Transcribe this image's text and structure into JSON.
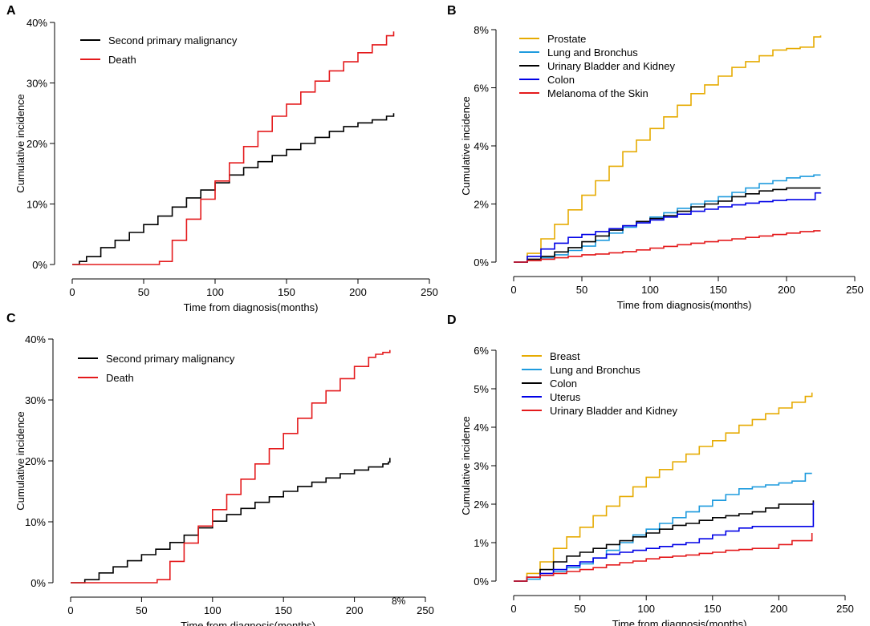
{
  "figure": {
    "description_text": "",
    "stray_label": "8%"
  },
  "chart_data": [
    {
      "panel": "A",
      "type": "line",
      "xlabel": "Time from diagnosis(months)",
      "ylabel": "Cumulative incidence",
      "xlim": [
        0,
        250
      ],
      "ylim": [
        0,
        40
      ],
      "x_ticks": [
        "0",
        "50",
        "100",
        "150",
        "200",
        "250"
      ],
      "y_ticks": [
        "0%",
        "10%",
        "20%",
        "30%",
        "40%"
      ],
      "x_tick_values": [
        0,
        50,
        100,
        150,
        200,
        250
      ],
      "y_tick_values": [
        0,
        10,
        20,
        30,
        40
      ],
      "legend": "top-left",
      "series": [
        {
          "name": "Second primary malignancy",
          "color": "#000000",
          "x": [
            0,
            5,
            10,
            20,
            30,
            40,
            50,
            60,
            70,
            80,
            90,
            100,
            110,
            120,
            130,
            140,
            150,
            160,
            170,
            180,
            190,
            200,
            210,
            220,
            225
          ],
          "y": [
            0,
            0.5,
            1.3,
            2.8,
            4.0,
            5.3,
            6.6,
            8.0,
            9.5,
            11.0,
            12.3,
            13.5,
            14.8,
            16.0,
            17.0,
            18.0,
            19.0,
            20.0,
            21.0,
            22.0,
            22.8,
            23.4,
            23.9,
            24.5,
            25.0
          ]
        },
        {
          "name": "Death",
          "color": "#e41a1c",
          "x": [
            0,
            60,
            61,
            70,
            80,
            90,
            100,
            110,
            120,
            130,
            140,
            150,
            160,
            170,
            180,
            190,
            200,
            210,
            220,
            225
          ],
          "y": [
            0,
            0,
            0.5,
            4.0,
            7.5,
            10.8,
            13.8,
            16.8,
            19.5,
            22.0,
            24.5,
            26.5,
            28.5,
            30.3,
            32.0,
            33.5,
            35.0,
            36.3,
            37.8,
            38.5
          ]
        }
      ]
    },
    {
      "panel": "B",
      "type": "line",
      "xlabel": "Time from diagnosis(months)",
      "ylabel": "Cumulative incidence",
      "xlim": [
        0,
        250
      ],
      "ylim": [
        0,
        8
      ],
      "x_ticks": [
        "0",
        "50",
        "100",
        "150",
        "200",
        "250"
      ],
      "y_ticks": [
        "0%",
        "2%",
        "4%",
        "6%",
        "8%"
      ],
      "x_tick_values": [
        0,
        50,
        100,
        150,
        200,
        250
      ],
      "y_tick_values": [
        0,
        2,
        4,
        6,
        8
      ],
      "legend": "top-left",
      "series": [
        {
          "name": "Prostate",
          "color": "#e6ab02",
          "x": [
            0,
            10,
            20,
            30,
            40,
            50,
            60,
            70,
            80,
            90,
            100,
            110,
            120,
            130,
            140,
            150,
            160,
            170,
            180,
            190,
            200,
            210,
            220,
            225
          ],
          "y": [
            0,
            0.3,
            0.8,
            1.3,
            1.8,
            2.3,
            2.8,
            3.3,
            3.8,
            4.2,
            4.6,
            5.0,
            5.4,
            5.8,
            6.1,
            6.4,
            6.7,
            6.9,
            7.1,
            7.3,
            7.35,
            7.4,
            7.75,
            7.8
          ]
        },
        {
          "name": "Lung and Bronchus",
          "color": "#1f9bde",
          "x": [
            0,
            10,
            20,
            30,
            40,
            50,
            60,
            70,
            80,
            90,
            100,
            110,
            120,
            130,
            140,
            150,
            160,
            170,
            180,
            190,
            200,
            210,
            220,
            225
          ],
          "y": [
            0,
            0.05,
            0.15,
            0.25,
            0.4,
            0.55,
            0.75,
            1.0,
            1.2,
            1.4,
            1.55,
            1.7,
            1.85,
            2.0,
            2.1,
            2.25,
            2.4,
            2.55,
            2.7,
            2.8,
            2.9,
            2.95,
            3.0,
            3.0
          ]
        },
        {
          "name": "Urinary Bladder and Kidney",
          "color": "#000000",
          "x": [
            0,
            10,
            20,
            30,
            40,
            50,
            60,
            70,
            80,
            90,
            100,
            110,
            120,
            130,
            140,
            150,
            160,
            170,
            180,
            190,
            200,
            210,
            220,
            225
          ],
          "y": [
            0,
            0.1,
            0.2,
            0.35,
            0.5,
            0.7,
            0.9,
            1.1,
            1.25,
            1.4,
            1.5,
            1.6,
            1.75,
            1.9,
            2.0,
            2.1,
            2.25,
            2.35,
            2.45,
            2.5,
            2.55,
            2.55,
            2.55,
            2.55
          ]
        },
        {
          "name": "Colon",
          "color": "#0000e6",
          "x": [
            0,
            10,
            20,
            30,
            40,
            50,
            60,
            70,
            80,
            90,
            100,
            110,
            120,
            130,
            140,
            150,
            160,
            170,
            180,
            190,
            200,
            210,
            220,
            221,
            225
          ],
          "y": [
            0,
            0.2,
            0.45,
            0.65,
            0.85,
            0.95,
            1.05,
            1.15,
            1.25,
            1.35,
            1.45,
            1.55,
            1.65,
            1.75,
            1.82,
            1.9,
            1.97,
            2.03,
            2.08,
            2.12,
            2.15,
            2.15,
            2.15,
            2.38,
            2.4
          ]
        },
        {
          "name": "Melanoma of the Skin",
          "color": "#e41a1c",
          "x": [
            0,
            10,
            20,
            30,
            40,
            50,
            60,
            70,
            80,
            90,
            100,
            110,
            120,
            130,
            140,
            150,
            160,
            170,
            180,
            190,
            200,
            210,
            220,
            225
          ],
          "y": [
            0,
            0.05,
            0.1,
            0.15,
            0.2,
            0.25,
            0.28,
            0.32,
            0.36,
            0.42,
            0.48,
            0.54,
            0.6,
            0.65,
            0.7,
            0.75,
            0.8,
            0.85,
            0.9,
            0.95,
            1.0,
            1.05,
            1.08,
            1.08
          ]
        }
      ]
    },
    {
      "panel": "C",
      "type": "line",
      "xlabel": "Time from diagnosis(months)",
      "ylabel": "Cumulative incidence",
      "xlim": [
        0,
        250
      ],
      "ylim": [
        0,
        40
      ],
      "x_ticks": [
        "0",
        "50",
        "100",
        "150",
        "200",
        "250"
      ],
      "y_ticks": [
        "0%",
        "10%",
        "20%",
        "30%",
        "40%"
      ],
      "x_tick_values": [
        0,
        50,
        100,
        150,
        200,
        250
      ],
      "y_tick_values": [
        0,
        10,
        20,
        30,
        40
      ],
      "legend": "top-left",
      "series": [
        {
          "name": "Second primary malignancy",
          "color": "#000000",
          "x": [
            0,
            10,
            20,
            30,
            40,
            50,
            60,
            70,
            80,
            90,
            100,
            110,
            120,
            130,
            140,
            150,
            160,
            170,
            180,
            190,
            200,
            210,
            220,
            224,
            225
          ],
          "y": [
            0,
            0.5,
            1.6,
            2.6,
            3.6,
            4.6,
            5.5,
            6.6,
            7.8,
            9.0,
            10.1,
            11.2,
            12.2,
            13.2,
            14.1,
            15.0,
            15.8,
            16.5,
            17.2,
            17.9,
            18.5,
            19.0,
            19.5,
            19.8,
            20.5
          ]
        },
        {
          "name": "Death",
          "color": "#e41a1c",
          "x": [
            0,
            60,
            61,
            70,
            80,
            90,
            100,
            110,
            120,
            130,
            140,
            150,
            160,
            170,
            180,
            190,
            200,
            210,
            215,
            220,
            225
          ],
          "y": [
            0,
            0,
            0.5,
            3.5,
            6.5,
            9.3,
            12.0,
            14.5,
            17.0,
            19.5,
            22.0,
            24.5,
            27.0,
            29.5,
            31.5,
            33.5,
            35.5,
            37.0,
            37.5,
            37.8,
            38.2
          ]
        }
      ]
    },
    {
      "panel": "D",
      "type": "line",
      "xlabel": "Time from diagnosis(months)",
      "ylabel": "Cumulative incidence",
      "xlim": [
        0,
        250
      ],
      "ylim": [
        0,
        6
      ],
      "x_ticks": [
        "0",
        "50",
        "100",
        "150",
        "200",
        "250"
      ],
      "y_ticks": [
        "0%",
        "1%",
        "2%",
        "3%",
        "4%",
        "5%",
        "6%"
      ],
      "x_tick_values": [
        0,
        50,
        100,
        150,
        200,
        250
      ],
      "y_tick_values": [
        0,
        1,
        2,
        3,
        4,
        5,
        6
      ],
      "legend": "top-left",
      "series": [
        {
          "name": "Breast",
          "color": "#e6ab02",
          "x": [
            0,
            10,
            20,
            30,
            40,
            50,
            60,
            70,
            80,
            90,
            100,
            110,
            120,
            130,
            140,
            150,
            160,
            170,
            180,
            190,
            200,
            210,
            220,
            225
          ],
          "y": [
            0,
            0.2,
            0.5,
            0.85,
            1.15,
            1.4,
            1.7,
            1.95,
            2.2,
            2.45,
            2.7,
            2.9,
            3.1,
            3.3,
            3.5,
            3.65,
            3.85,
            4.05,
            4.2,
            4.35,
            4.5,
            4.65,
            4.8,
            4.9
          ]
        },
        {
          "name": "Lung and Bronchus",
          "color": "#1f9bde",
          "x": [
            0,
            10,
            20,
            30,
            40,
            50,
            60,
            70,
            80,
            90,
            100,
            110,
            120,
            130,
            140,
            150,
            160,
            170,
            180,
            190,
            200,
            210,
            220,
            225
          ],
          "y": [
            0,
            0.05,
            0.15,
            0.25,
            0.35,
            0.45,
            0.6,
            0.8,
            1.0,
            1.2,
            1.35,
            1.5,
            1.65,
            1.8,
            1.95,
            2.1,
            2.25,
            2.4,
            2.45,
            2.5,
            2.55,
            2.6,
            2.8,
            2.8
          ]
        },
        {
          "name": "Colon",
          "color": "#000000",
          "x": [
            0,
            10,
            20,
            30,
            40,
            50,
            60,
            70,
            80,
            90,
            100,
            110,
            120,
            130,
            140,
            150,
            160,
            170,
            180,
            190,
            200,
            210,
            220,
            225,
            226
          ],
          "y": [
            0,
            0.1,
            0.3,
            0.5,
            0.65,
            0.75,
            0.85,
            0.95,
            1.05,
            1.15,
            1.25,
            1.35,
            1.45,
            1.5,
            1.58,
            1.65,
            1.7,
            1.75,
            1.8,
            1.9,
            2.0,
            2.0,
            2.0,
            2.0,
            2.1
          ]
        },
        {
          "name": "Uterus",
          "color": "#0000e6",
          "x": [
            0,
            10,
            20,
            30,
            40,
            50,
            60,
            70,
            80,
            90,
            100,
            110,
            120,
            130,
            140,
            150,
            160,
            170,
            180,
            190,
            200,
            210,
            220,
            225,
            226
          ],
          "y": [
            0,
            0.1,
            0.2,
            0.3,
            0.4,
            0.5,
            0.6,
            0.7,
            0.75,
            0.8,
            0.85,
            0.9,
            0.95,
            1.0,
            1.1,
            1.2,
            1.3,
            1.38,
            1.42,
            1.42,
            1.42,
            1.42,
            1.42,
            1.42,
            2.05
          ]
        },
        {
          "name": "Urinary Bladder and Kidney",
          "color": "#e41a1c",
          "x": [
            0,
            10,
            20,
            30,
            40,
            50,
            60,
            70,
            80,
            90,
            100,
            110,
            120,
            130,
            140,
            150,
            160,
            170,
            180,
            190,
            200,
            210,
            220,
            224,
            225
          ],
          "y": [
            0,
            0.1,
            0.15,
            0.2,
            0.25,
            0.3,
            0.35,
            0.42,
            0.48,
            0.52,
            0.58,
            0.62,
            0.65,
            0.68,
            0.72,
            0.75,
            0.8,
            0.82,
            0.85,
            0.85,
            0.95,
            1.05,
            1.05,
            1.05,
            1.25
          ]
        }
      ]
    }
  ]
}
